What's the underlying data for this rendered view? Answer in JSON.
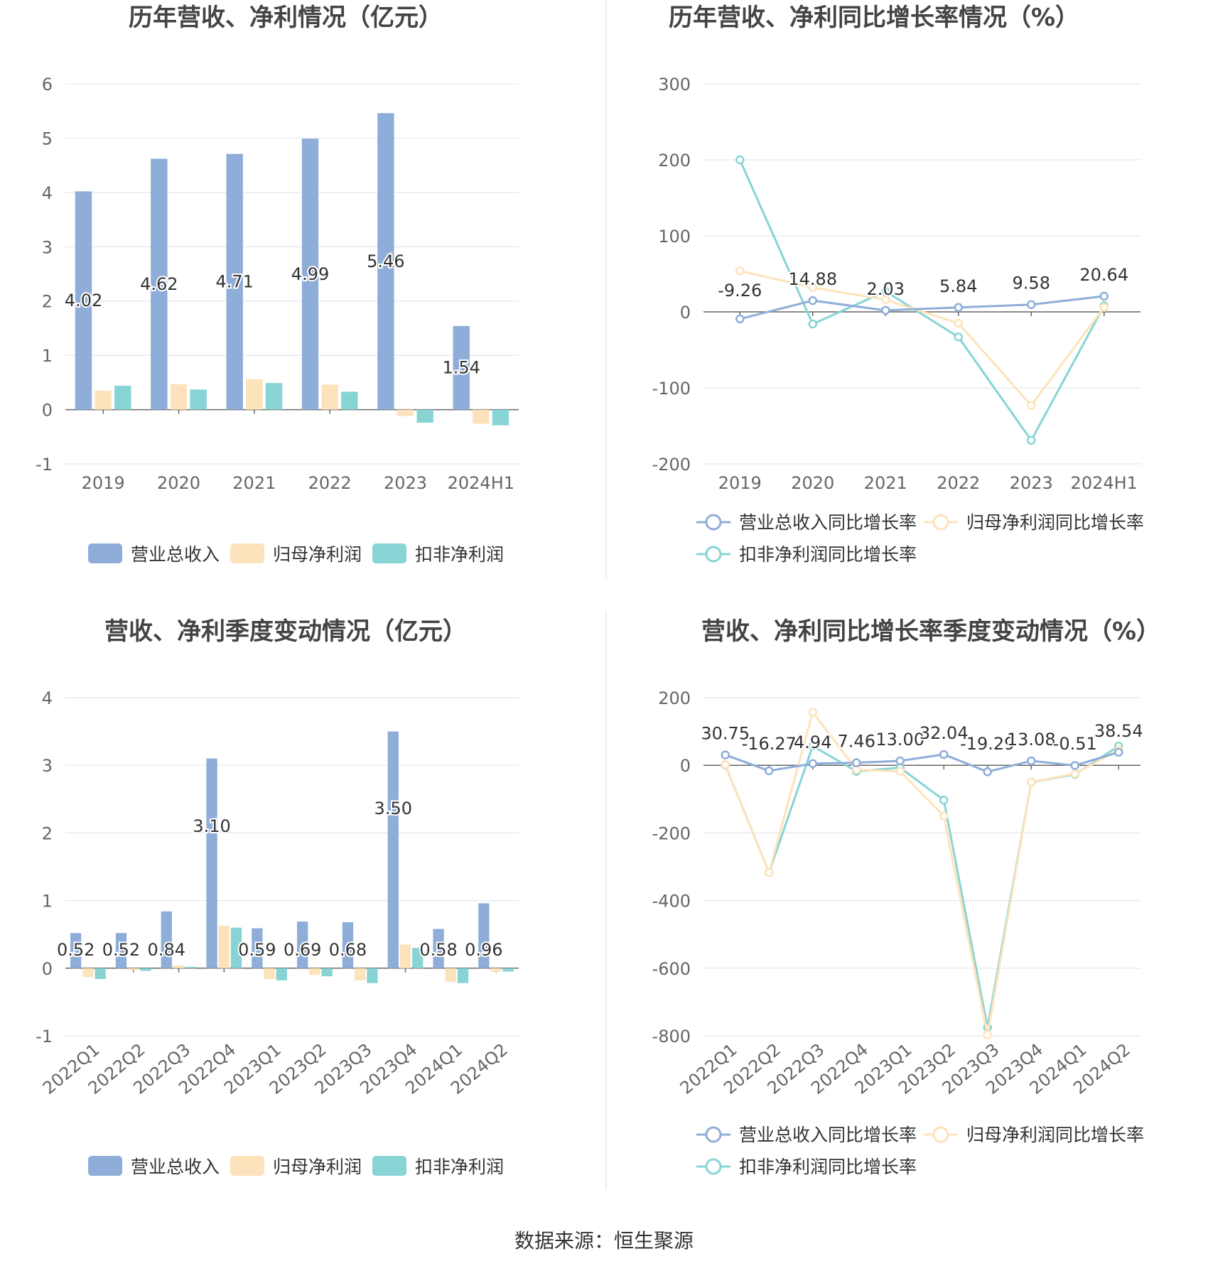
{
  "chart_data": [
    {
      "type": "bar",
      "title": "历年营收、净利情况（亿元）",
      "categories": [
        "2019",
        "2020",
        "2021",
        "2022",
        "2023",
        "2024H1"
      ],
      "ylim": [
        -1,
        6
      ],
      "yticks": [
        -1,
        0,
        1,
        2,
        3,
        4,
        5,
        6
      ],
      "grid": true,
      "legend_position": "bottom",
      "series": [
        {
          "name": "营业总收入",
          "color": "#8eadd9",
          "values": [
            4.02,
            4.62,
            4.71,
            4.99,
            5.46,
            1.54
          ],
          "labels": [
            "4.02",
            "4.62",
            "4.71",
            "4.99",
            "5.46",
            "1.54"
          ]
        },
        {
          "name": "归母净利润",
          "color": "#fde3bb",
          "values": [
            0.35,
            0.47,
            0.56,
            0.46,
            -0.12,
            -0.26
          ]
        },
        {
          "name": "扣非净利润",
          "color": "#88d4d4",
          "values": [
            0.44,
            0.37,
            0.49,
            0.33,
            -0.24,
            -0.29
          ]
        }
      ]
    },
    {
      "type": "line",
      "title": "历年营收、净利同比增长率情况（%）",
      "categories": [
        "2019",
        "2020",
        "2021",
        "2022",
        "2023",
        "2024H1"
      ],
      "ylim": [
        -200,
        300
      ],
      "yticks": [
        -200,
        -100,
        0,
        100,
        200,
        300
      ],
      "grid": true,
      "legend_position": "bottom",
      "series": [
        {
          "name": "营业总收入同比增长率",
          "color": "#8eadd9",
          "values": [
            -9.26,
            14.88,
            2.03,
            5.84,
            9.58,
            20.64
          ],
          "labels": [
            "-9.26",
            "14.88",
            "2.03",
            "5.84",
            "9.58",
            "20.64"
          ]
        },
        {
          "name": "归母净利润同比增长率",
          "color": "#fde3bb",
          "values": [
            54,
            32,
            16,
            -15,
            -123,
            6
          ]
        },
        {
          "name": "扣非净利润同比增长率",
          "color": "#88d4d4",
          "values": [
            200,
            -16,
            27,
            -33,
            -169,
            8
          ]
        }
      ]
    },
    {
      "type": "bar",
      "title": "营收、净利季度变动情况（亿元）",
      "categories": [
        "2022Q1",
        "2022Q2",
        "2022Q3",
        "2022Q4",
        "2023Q1",
        "2023Q2",
        "2023Q3",
        "2023Q4",
        "2024Q1",
        "2024Q2"
      ],
      "ylim": [
        -1,
        4
      ],
      "yticks": [
        -1,
        0,
        1,
        2,
        3,
        4
      ],
      "grid": true,
      "legend_position": "bottom",
      "series": [
        {
          "name": "营业总收入",
          "color": "#8eadd9",
          "values": [
            0.52,
            0.52,
            0.84,
            3.1,
            0.59,
            0.69,
            0.68,
            3.5,
            0.58,
            0.96
          ],
          "labels": [
            "0.52",
            "0.52",
            "0.84",
            "3.10",
            "0.59",
            "0.69",
            "0.68",
            "3.50",
            "0.58",
            "0.96"
          ]
        },
        {
          "name": "归母净利润",
          "color": "#fde3bb",
          "values": [
            -0.13,
            -0.03,
            0.04,
            0.63,
            -0.16,
            -0.1,
            -0.18,
            0.35,
            -0.2,
            -0.05
          ]
        },
        {
          "name": "扣非净利润",
          "color": "#88d4d4",
          "values": [
            -0.16,
            -0.04,
            0.02,
            0.6,
            -0.18,
            -0.12,
            -0.22,
            0.3,
            -0.22,
            -0.05
          ]
        }
      ]
    },
    {
      "type": "line",
      "title": "营收、净利同比增长率季度变动情况（%）",
      "categories": [
        "2022Q1",
        "2022Q2",
        "2022Q3",
        "2022Q4",
        "2023Q1",
        "2023Q2",
        "2023Q3",
        "2023Q4",
        "2024Q1",
        "2024Q2"
      ],
      "ylim": [
        -800,
        200
      ],
      "yticks": [
        -800,
        -600,
        -400,
        -200,
        0,
        200
      ],
      "grid": true,
      "legend_position": "bottom",
      "series": [
        {
          "name": "营业总收入同比增长率",
          "color": "#8eadd9",
          "values": [
            30.75,
            -16.27,
            4.94,
            7.46,
            13.0,
            32.04,
            -19.29,
            13.08,
            -0.51,
            38.54
          ],
          "labels": [
            "30.75",
            "-16.27",
            "4.94",
            "7.46",
            "13.00",
            "32.04",
            "-19.29",
            "13.08",
            "-0.51",
            "38.54"
          ]
        },
        {
          "name": "归母净利润同比增长率",
          "color": "#fde3bb",
          "values": [
            2,
            -317,
            157,
            -13,
            -18,
            -150,
            -797,
            -50,
            -25,
            45
          ]
        },
        {
          "name": "扣非净利润同比增长率",
          "color": "#88d4d4",
          "values": [
            1,
            -317,
            57,
            -18,
            -7,
            -103,
            -775,
            -50,
            -27,
            57
          ]
        }
      ]
    }
  ],
  "source": "数据来源：恒生聚源"
}
